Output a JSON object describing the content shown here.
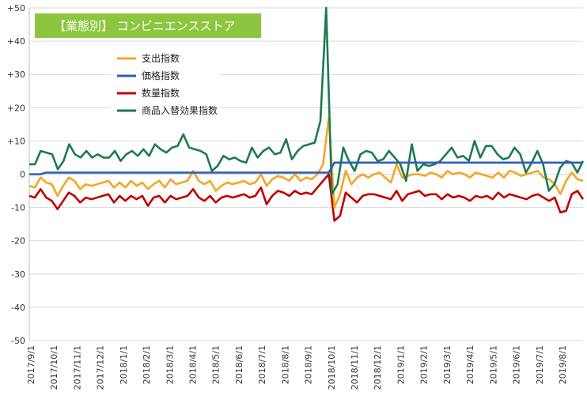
{
  "chart_data": {
    "type": "line",
    "title": "【業態別】 コンビニエンスストア",
    "colors": {
      "title_bg": "#8cc63f",
      "grid": "#d9d9d9"
    },
    "ylim": [
      -50,
      50
    ],
    "y_ticks": [
      "+50",
      "+40",
      "+30",
      "+20",
      "+10",
      "0",
      "-10",
      "-20",
      "-30",
      "-40",
      "-50"
    ],
    "y_tick_values": [
      50,
      40,
      30,
      20,
      10,
      0,
      -10,
      -20,
      -30,
      -40,
      -50
    ],
    "x_tick_labels": [
      "2017/9/1",
      "2017/10/1",
      "2017/11/1",
      "2017/12/1",
      "2018/1/1",
      "2018/2/1",
      "2018/3/1",
      "2018/4/1",
      "2018/5/1",
      "2018/6/1",
      "2018/7/1",
      "2018/8/1",
      "2018/9/1",
      "2018/10/1",
      "2018/11/1",
      "2018/12/1",
      "2019/1/1",
      "2019/2/1",
      "2019/3/1",
      "2019/4/1",
      "2019/5/1",
      "2019/6/1",
      "2019/7/1",
      "2019/8/1"
    ],
    "legend_position": "upper-left",
    "series": [
      {
        "name": "支出指数",
        "color": "#f5a623",
        "values": [
          -3.5,
          -4,
          -1,
          -2.5,
          -3,
          -6.5,
          -3.5,
          -1,
          -2,
          -4.5,
          -3,
          -3.5,
          -3,
          -2.5,
          -2,
          -4,
          -2.5,
          -4,
          -2,
          -3.5,
          -2.5,
          -4.5,
          -3,
          -2,
          -4,
          -1.5,
          -3,
          -2.5,
          -2,
          1,
          -2,
          -3,
          -2,
          -5,
          -3.5,
          -2.5,
          -3,
          -2.5,
          -2,
          -3,
          -2.5,
          0,
          -3.5,
          -1.5,
          -0.5,
          -1,
          -2,
          0,
          -2,
          -1,
          -1.5,
          0,
          3,
          17,
          -10,
          -6,
          1,
          -3,
          -1,
          0,
          -1,
          0,
          0.5,
          -1,
          -2.5,
          3,
          -1,
          -0.5,
          0,
          0,
          -0.5,
          0.5,
          0,
          -1,
          1,
          0,
          0.5,
          0,
          -1,
          0.5,
          0,
          -0.5,
          -1,
          0.5,
          -1,
          1,
          0.5,
          -0.5,
          0,
          0.5,
          1,
          -1,
          -1.5,
          -3,
          -6,
          -2,
          0.5,
          -1.5,
          -2
        ]
      },
      {
        "name": "価格指数",
        "color": "#2e5fb5",
        "values": [
          0,
          0,
          0,
          0.5,
          0.5,
          0.5,
          0.5,
          0.5,
          0.5,
          0.5,
          0.5,
          0.5,
          0.5,
          0.5,
          0.5,
          0.5,
          0.5,
          0.5,
          0.5,
          0.5,
          0.5,
          0.5,
          0.5,
          0.5,
          0.5,
          0.5,
          0.5,
          0.5,
          0.5,
          0.5,
          0.5,
          0.5,
          0.5,
          0.5,
          0.5,
          0.5,
          0.5,
          0.5,
          0.5,
          0.5,
          0.5,
          0.5,
          0.5,
          0.5,
          0.5,
          0.5,
          0.5,
          0.5,
          0.5,
          0.5,
          0.5,
          0.5,
          0.5,
          0.5,
          3.5,
          3.5,
          3.5,
          3.5,
          3.5,
          3.5,
          3.5,
          3.5,
          3.5,
          3.5,
          3.5,
          3.5,
          3.5,
          3.5,
          3.5,
          3.5,
          3.5,
          3.5,
          3.5,
          3.5,
          3.5,
          3.5,
          3.5,
          3.5,
          3.5,
          3.5,
          3.5,
          3.5,
          3.5,
          3.5,
          3.5,
          3.5,
          3.5,
          3.5,
          3.5,
          3.5,
          3.5,
          3.5,
          3.5,
          3.5,
          3.5,
          3.5,
          3.5,
          3.5,
          3.5
        ]
      },
      {
        "name": "数量指数",
        "color": "#c00000",
        "values": [
          -6.5,
          -7,
          -4.5,
          -7,
          -8,
          -10.5,
          -8,
          -5.5,
          -6.5,
          -8.5,
          -7,
          -7.5,
          -7,
          -6.5,
          -6,
          -8.5,
          -6.5,
          -8,
          -6.5,
          -7.5,
          -6.5,
          -9.5,
          -7,
          -6.5,
          -8.5,
          -6.5,
          -7.5,
          -7,
          -6.5,
          -4.5,
          -7,
          -8,
          -6.5,
          -8.5,
          -7,
          -6.5,
          -7,
          -6.5,
          -6,
          -7,
          -6.5,
          -4,
          -9,
          -6.5,
          -5,
          -5.5,
          -6.5,
          -5,
          -6,
          -5.5,
          -6,
          -4,
          -2,
          0,
          -14,
          -12.5,
          -5.5,
          -7,
          -8.5,
          -6.5,
          -6,
          -6,
          -6.5,
          -7,
          -7.5,
          -5,
          -8,
          -6,
          -5.5,
          -5,
          -6.5,
          -6,
          -6,
          -7.5,
          -6,
          -7,
          -6.5,
          -7,
          -8,
          -6.5,
          -7,
          -6.5,
          -7.5,
          -5.5,
          -7,
          -6,
          -6.5,
          -7,
          -7.5,
          -6.5,
          -6,
          -7,
          -8,
          -7,
          -11.5,
          -11,
          -6,
          -5,
          -7.5
        ]
      },
      {
        "name": "商品入替効果指数",
        "color": "#1e7a4f",
        "values": [
          3,
          3,
          7,
          6.5,
          6,
          1.5,
          4,
          9,
          6,
          5,
          7,
          5,
          6,
          5,
          5,
          7,
          4,
          6,
          7,
          5.5,
          7.5,
          5.5,
          9,
          7.5,
          6.5,
          8,
          8.5,
          12,
          8,
          7.5,
          7,
          6,
          1,
          2.5,
          5.5,
          4.5,
          5,
          4,
          3.5,
          8,
          5,
          7,
          8,
          6,
          6.5,
          10.5,
          4.5,
          7,
          8.5,
          9,
          9.5,
          16,
          50,
          -6,
          -3,
          8,
          4,
          1,
          6,
          7,
          6.5,
          4,
          4.5,
          7,
          5,
          3,
          -2,
          9,
          1,
          3,
          2.5,
          3,
          4,
          6,
          8,
          5,
          5.5,
          4,
          10,
          5,
          8.5,
          8.5,
          6,
          4.5,
          5,
          8,
          6,
          0.5,
          3.5,
          7,
          3,
          -5,
          -3,
          2,
          4,
          3.5,
          0.5,
          4
        ]
      }
    ]
  }
}
